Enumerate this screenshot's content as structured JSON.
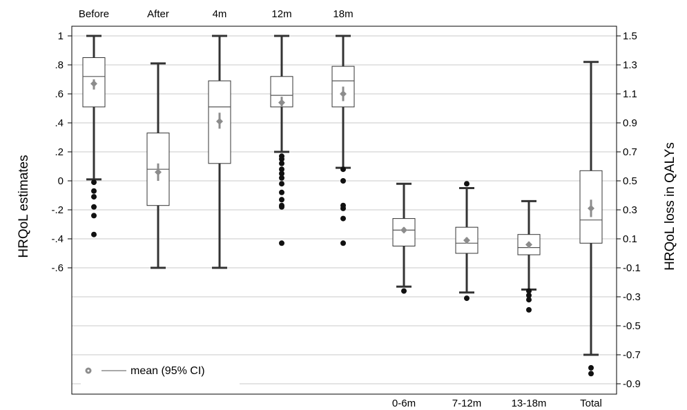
{
  "chart_data": {
    "type": "boxplot",
    "ylabel_left": "HRQoL estimates",
    "ylabel_right": "HRQoL loss in QALYs",
    "left_axis": {
      "ylim": [
        -1.4,
        1.0
      ],
      "ticks": [
        1,
        0.8,
        0.6,
        0.4,
        0.2,
        0,
        -0.2,
        -0.4,
        -0.6
      ],
      "tick_labels": [
        "1",
        ".8",
        ".6",
        ".4",
        ".2",
        "0",
        "-.2",
        "-.4",
        "-.6"
      ]
    },
    "right_axis": {
      "ylim": [
        -0.9,
        1.5
      ],
      "ticks": [
        1.5,
        1.3,
        1.1,
        0.9,
        0.7,
        0.5,
        0.3,
        0.1,
        -0.1,
        -0.3,
        -0.5,
        -0.7,
        -0.9
      ],
      "tick_labels": [
        "1.5",
        "1.3",
        "1.1",
        "0.9",
        "0.7",
        "0.5",
        "0.3",
        "0.1",
        "-0.1",
        "-0.3",
        "-0.5",
        "-0.7",
        "-0.9"
      ]
    },
    "grid": true,
    "legend": {
      "label": "mean (95% CI)",
      "placement": "bottom-left"
    },
    "groups": [
      {
        "label": "Before",
        "label_position": "top",
        "axis": "left",
        "whisker_low": 0.01,
        "q1": 0.51,
        "median": 0.72,
        "q3": 0.85,
        "whisker_high": 1.0,
        "mean": 0.67,
        "ci": [
          0.63,
          0.7
        ],
        "outliers": [
          -0.01,
          -0.07,
          -0.11,
          -0.18,
          -0.24,
          -0.37
        ]
      },
      {
        "label": "After",
        "label_position": "top",
        "axis": "left",
        "whisker_low": -0.6,
        "q1": -0.17,
        "median": 0.08,
        "q3": 0.33,
        "whisker_high": 0.81,
        "mean": 0.06,
        "ci": [
          0.0,
          0.12
        ],
        "outliers": []
      },
      {
        "label": "4m",
        "label_position": "top",
        "axis": "left",
        "whisker_low": -0.6,
        "q1": 0.12,
        "median": 0.51,
        "q3": 0.69,
        "whisker_high": 1.0,
        "mean": 0.41,
        "ci": [
          0.36,
          0.47
        ],
        "outliers": []
      },
      {
        "label": "12m",
        "label_position": "top",
        "axis": "left",
        "whisker_low": 0.2,
        "q1": 0.51,
        "median": 0.59,
        "q3": 0.72,
        "whisker_high": 1.0,
        "mean": 0.54,
        "ci": [
          0.51,
          0.58
        ],
        "outliers": [
          0.17,
          0.15,
          0.12,
          0.08,
          0.05,
          0.02,
          -0.02,
          -0.08,
          -0.13,
          -0.17,
          -0.18,
          -0.43
        ]
      },
      {
        "label": "18m",
        "label_position": "top",
        "axis": "left",
        "whisker_low": 0.09,
        "q1": 0.51,
        "median": 0.69,
        "q3": 0.79,
        "whisker_high": 1.0,
        "mean": 0.6,
        "ci": [
          0.55,
          0.65
        ],
        "outliers": [
          0.08,
          0.0,
          -0.17,
          -0.19,
          -0.26,
          -0.43
        ]
      },
      {
        "label": "0-6m",
        "label_position": "bottom",
        "axis": "right",
        "whisker_low": -0.23,
        "q1": 0.05,
        "median": 0.16,
        "q3": 0.24,
        "whisker_high": 0.48,
        "mean": 0.16,
        "ci": [
          0.14,
          0.18
        ],
        "outliers": [
          -0.26
        ]
      },
      {
        "label": "7-12m",
        "label_position": "bottom",
        "axis": "right",
        "whisker_low": -0.27,
        "q1": 0.0,
        "median": 0.07,
        "q3": 0.18,
        "whisker_high": 0.45,
        "mean": 0.09,
        "ci": [
          0.07,
          0.11
        ],
        "outliers": [
          0.48,
          -0.31
        ]
      },
      {
        "label": "13-18m",
        "label_position": "bottom",
        "axis": "right",
        "whisker_low": -0.25,
        "q1": -0.01,
        "median": 0.04,
        "q3": 0.13,
        "whisker_high": 0.36,
        "mean": 0.06,
        "ci": [
          0.04,
          0.08
        ],
        "outliers": [
          -0.26,
          -0.29,
          -0.32,
          -0.39
        ]
      },
      {
        "label": "Total",
        "label_position": "bottom",
        "axis": "right",
        "whisker_low": -0.7,
        "q1": 0.07,
        "median": 0.23,
        "q3": 0.57,
        "whisker_high": 1.32,
        "mean": 0.31,
        "ci": [
          0.25,
          0.37
        ],
        "outliers": [
          -0.79,
          -0.83
        ]
      }
    ],
    "colors": {
      "axis": "#000000",
      "box": "#333333",
      "grid": "#dcdcdc",
      "mean_marker": "#8c8c8c",
      "outlier": "#111111"
    }
  }
}
